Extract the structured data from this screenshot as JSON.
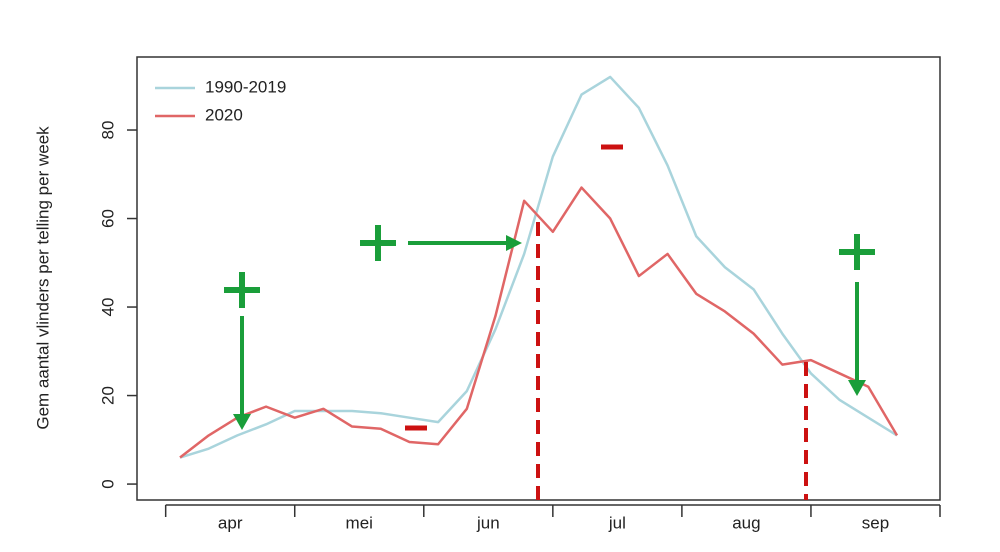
{
  "chart_data": {
    "type": "line",
    "y_label": "Gem aantal vlinders per telling per week",
    "x": [
      0,
      1,
      2,
      3,
      4,
      5,
      6,
      7,
      8,
      9,
      10,
      11,
      12,
      13,
      14,
      15,
      16,
      17,
      18,
      19,
      20,
      21,
      22,
      23,
      24,
      25
    ],
    "xlim": [
      -1.5,
      26.5
    ],
    "month_boundaries": [
      -0.5,
      4,
      8.5,
      13,
      17.5,
      22,
      26.5
    ],
    "months": [
      "apr",
      "mei",
      "jun",
      "jul",
      "aug",
      "sep"
    ],
    "series": [
      {
        "name": "1990-2019",
        "color": "#a9d4dc",
        "values": [
          6,
          8,
          11,
          13.5,
          16.5,
          16.5,
          16.5,
          16,
          15,
          14,
          21,
          35,
          52,
          74,
          88,
          92,
          85,
          72,
          56,
          49,
          44,
          34,
          25,
          19,
          15,
          11
        ]
      },
      {
        "name": "2020",
        "color": "#e06666",
        "values": [
          6,
          11,
          15,
          17.5,
          15,
          17,
          13,
          12.5,
          9.5,
          9,
          17,
          38,
          64,
          57,
          67,
          60,
          47,
          52,
          43,
          39,
          34,
          27,
          28,
          25,
          22,
          11
        ]
      }
    ],
    "ylim": [
      -3.6,
      96.5
    ],
    "yticks": [
      0,
      20,
      40,
      60,
      80
    ],
    "legend": "top-left"
  }
}
